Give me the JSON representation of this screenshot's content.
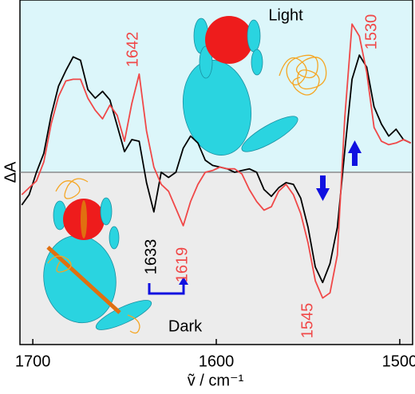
{
  "chart_data": {
    "type": "line",
    "x_label": "ṽ / cm⁻¹",
    "y_label": "ΔA",
    "x": [
      1706,
      1702,
      1698,
      1694,
      1690,
      1686,
      1682,
      1678,
      1674,
      1670,
      1666,
      1662,
      1658,
      1654,
      1650,
      1646,
      1642,
      1638,
      1634,
      1630,
      1626,
      1622,
      1618,
      1614,
      1610,
      1606,
      1602,
      1598,
      1594,
      1590,
      1586,
      1582,
      1578,
      1574,
      1570,
      1566,
      1562,
      1558,
      1554,
      1550,
      1546,
      1542,
      1538,
      1534,
      1530,
      1526,
      1522,
      1518,
      1514,
      1510,
      1506,
      1502,
      1498,
      1494
    ],
    "series": [
      {
        "color": "#000000",
        "values": [
          -0.19,
          -0.13,
          0.0,
          0.11,
          0.33,
          0.5,
          0.59,
          0.67,
          0.65,
          0.48,
          0.43,
          0.47,
          0.42,
          0.27,
          0.12,
          0.19,
          0.18,
          -0.06,
          -0.23,
          0.0,
          -0.03,
          0.0,
          0.14,
          0.21,
          0.17,
          0.07,
          0.04,
          0.03,
          0.02,
          0.0,
          0.01,
          0.02,
          0.0,
          -0.1,
          -0.14,
          -0.09,
          -0.06,
          -0.07,
          -0.15,
          -0.32,
          -0.55,
          -0.64,
          -0.53,
          -0.32,
          0.12,
          0.54,
          0.68,
          0.61,
          0.38,
          0.28,
          0.21,
          0.25,
          0.19,
          0.17
        ]
      },
      {
        "color": "#f04848",
        "values": [
          -0.13,
          -0.09,
          -0.05,
          0.06,
          0.28,
          0.44,
          0.53,
          0.54,
          0.54,
          0.43,
          0.36,
          0.31,
          0.39,
          0.33,
          0.18,
          0.4,
          0.57,
          0.24,
          0.03,
          -0.07,
          -0.11,
          -0.21,
          -0.31,
          -0.17,
          -0.07,
          0.0,
          0.01,
          0.03,
          0.02,
          0.02,
          -0.01,
          -0.1,
          -0.17,
          -0.22,
          -0.2,
          -0.11,
          -0.07,
          -0.13,
          -0.24,
          -0.41,
          -0.63,
          -0.73,
          -0.7,
          -0.48,
          0.31,
          0.86,
          0.79,
          0.58,
          0.26,
          0.18,
          0.16,
          0.17,
          0.19,
          0.17
        ]
      }
    ],
    "xlim": [
      1707,
      1493
    ],
    "ylim": [
      -1,
      1
    ],
    "xticks": [
      1700,
      1600,
      1500
    ],
    "annotations": [
      {
        "text": "1642",
        "color": "#f04848"
      },
      {
        "text": "1530",
        "color": "#f04848"
      },
      {
        "text": "1633",
        "color": "#000000"
      },
      {
        "text": "1619",
        "color": "#f04848"
      },
      {
        "text": "1545",
        "color": "#f04848"
      },
      {
        "text": "Light",
        "color": "#000000"
      },
      {
        "text": "Dark",
        "color": "#000000"
      }
    ]
  }
}
